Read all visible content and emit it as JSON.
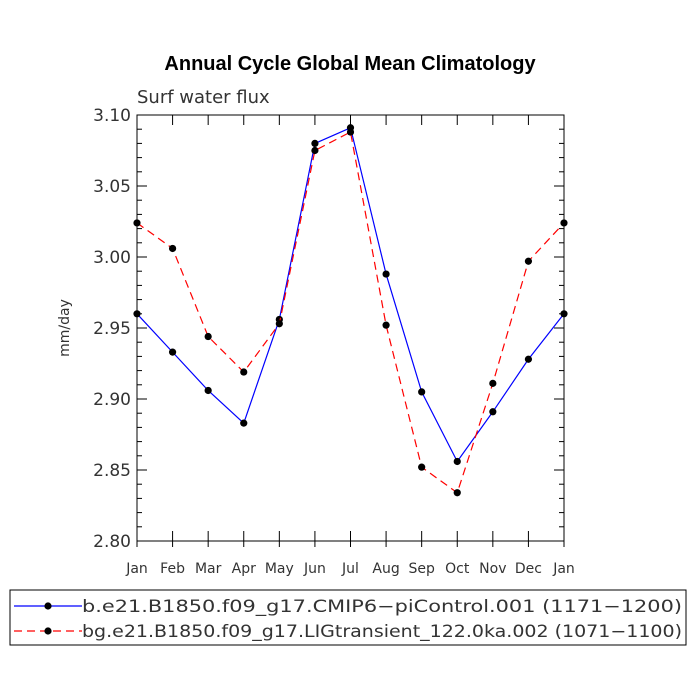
{
  "chart_data": {
    "type": "line",
    "title": "Annual Cycle Global Mean Climatology",
    "subtitle": "Surf water flux",
    "xlabel": "",
    "ylabel": "mm/day",
    "categories": [
      "Jan",
      "Feb",
      "Mar",
      "Apr",
      "May",
      "Jun",
      "Jul",
      "Aug",
      "Sep",
      "Oct",
      "Nov",
      "Dec",
      "Jan"
    ],
    "ylim": [
      2.8,
      3.1
    ],
    "yticks": [
      "2.80",
      "2.85",
      "2.90",
      "2.95",
      "3.00",
      "3.05",
      "3.10"
    ],
    "series": [
      {
        "name": "b.e21.B1850.f09_g17.CMIP6−piControl.001 (1171−1200)",
        "color": "#0000ff",
        "dash": "solid",
        "values": [
          2.96,
          2.933,
          2.906,
          2.883,
          2.956,
          3.08,
          3.091,
          2.988,
          2.905,
          2.856,
          2.891,
          2.928,
          2.96
        ]
      },
      {
        "name": "bg.e21.B1850.f09_g17.LIGtransient_122.0ka.002 (1071−1100)",
        "color": "#ff0000",
        "dash": "dashed",
        "values": [
          3.024,
          3.006,
          2.944,
          2.919,
          2.953,
          3.075,
          3.088,
          2.952,
          2.852,
          2.834,
          2.911,
          2.997,
          3.024
        ]
      }
    ],
    "legend_position": "bottom"
  }
}
